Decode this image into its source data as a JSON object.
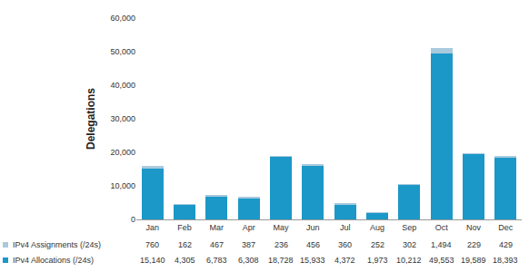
{
  "chart_data": {
    "type": "bar",
    "stacked": true,
    "y_label": "Delegations",
    "categories": [
      "Jan",
      "Feb",
      "Mar",
      "Apr",
      "May",
      "Jun",
      "Jul",
      "Aug",
      "Sep",
      "Oct",
      "Nov",
      "Dec"
    ],
    "series": [
      {
        "name": "IPv4 Allocations (/24s)",
        "color": "#1b98c8",
        "values": [
          15140,
          4305,
          6783,
          6308,
          18728,
          15933,
          4372,
          1973,
          10212,
          49553,
          19589,
          18393
        ],
        "value_labels": [
          "15,140",
          "4,305",
          "6,783",
          "6,308",
          "18,728",
          "15,933",
          "4,372",
          "1,973",
          "10,212",
          "49,553",
          "19,589",
          "18,393"
        ]
      },
      {
        "name": "IPv4 Assignments (/24s)",
        "color": "#a9c9dd",
        "values": [
          760,
          162,
          467,
          387,
          236,
          456,
          360,
          252,
          302,
          1494,
          229,
          429
        ],
        "value_labels": [
          "760",
          "162",
          "467",
          "387",
          "236",
          "456",
          "360",
          "252",
          "302",
          "1,494",
          "229",
          "429"
        ]
      }
    ],
    "ylim": [
      0,
      60000
    ],
    "yticks": [
      0,
      {
        "value": 10000,
        "label": "10,000"
      },
      {
        "value": 20000,
        "label": "20,000"
      },
      {
        "value": 30000,
        "label": "30,000"
      },
      {
        "value": 40000,
        "label": "40,000"
      },
      {
        "value": 50000,
        "label": "50,000"
      },
      {
        "value": 60000,
        "label": "60,000"
      }
    ],
    "grid": false
  }
}
